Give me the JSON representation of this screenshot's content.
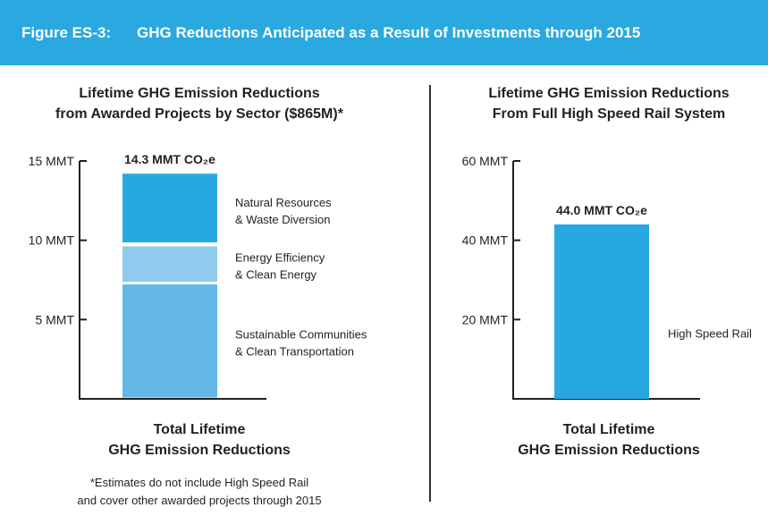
{
  "header": {
    "figure_label": "Figure ES-3:",
    "figure_title": "GHG Reductions Anticipated as a Result of Investments through 2015"
  },
  "left_panel": {
    "title_line1": "Lifetime GHG Emission Reductions",
    "title_line2": "from Awarded Projects by Sector ($865M)*",
    "total_line1": "Total Lifetime",
    "total_line2": "GHG Emission Reductions",
    "footnote_line1": "*Estimates do not include High Speed Rail",
    "footnote_line2": "and cover other awarded projects through 2015"
  },
  "right_panel": {
    "title_line1": "Lifetime GHG Emission Reductions",
    "title_line2": "From Full High Speed Rail System",
    "total_line1": "Total Lifetime",
    "total_line2": "GHG Emission Reductions"
  },
  "chart_data": [
    {
      "type": "bar",
      "stacked": true,
      "categories": [
        "Total Lifetime GHG Emission Reductions"
      ],
      "ylim": [
        0,
        15
      ],
      "yticks": [
        5,
        10,
        15
      ],
      "ytick_labels": [
        "5 MMT",
        "10 MMT",
        "15 MMT"
      ],
      "total_label": "14.3 MMT CO₂e",
      "series": [
        {
          "name": "Sustainable Communities & Clean Transportation",
          "label_line1": "Sustainable Communities",
          "label_line2": "& Clean Transportation",
          "values": [
            7.3
          ],
          "color": "#64b8e8"
        },
        {
          "name": "Energy Efficiency & Clean Energy",
          "label_line1": "Energy Efficiency",
          "label_line2": "& Clean Energy",
          "values": [
            2.4
          ],
          "color": "#91cbef"
        },
        {
          "name": "Natural Resources & Waste Diversion",
          "label_line1": "Natural Resources",
          "label_line2": "& Waste Diversion",
          "values": [
            4.5
          ],
          "color": "#27a8e0"
        }
      ]
    },
    {
      "type": "bar",
      "categories": [
        "Total Lifetime GHG Emission Reductions"
      ],
      "ylim": [
        0,
        60
      ],
      "yticks": [
        20,
        40,
        60
      ],
      "ytick_labels": [
        "20 MMT",
        "40 MMT",
        "60 MMT"
      ],
      "total_label": "44.0 MMT CO₂e",
      "series": [
        {
          "name": "High Speed Rail",
          "label_line1": "High Speed Rail",
          "values": [
            44.0
          ],
          "color": "#27a8e0"
        }
      ]
    }
  ]
}
